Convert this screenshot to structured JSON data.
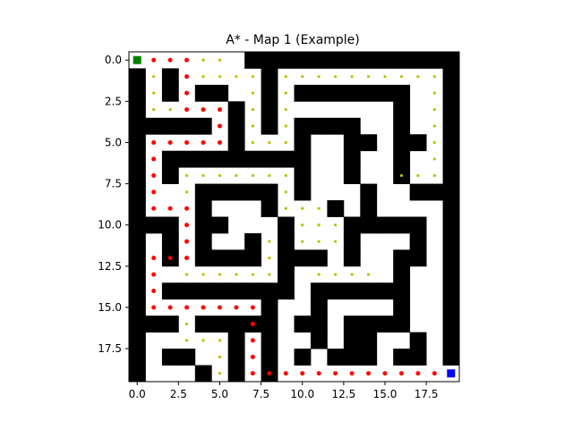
{
  "chart_data": {
    "type": "scatter",
    "title": "A* - Map 1 (Example)",
    "xlabel": "",
    "ylabel": "",
    "xlim": [
      -0.5,
      19.5
    ],
    "ylim": [
      19.5,
      -0.5
    ],
    "x_ticks": [
      0.0,
      2.5,
      5.0,
      7.5,
      10.0,
      12.5,
      15.0,
      17.5
    ],
    "x_tick_labels": [
      "0.0",
      "2.5",
      "5.0",
      "7.5",
      "10.0",
      "12.5",
      "15.0",
      "17.5"
    ],
    "y_ticks": [
      0.0,
      2.5,
      5.0,
      7.5,
      10.0,
      12.5,
      15.0,
      17.5
    ],
    "y_tick_labels": [
      "0.0",
      "2.5",
      "5.0",
      "7.5",
      "10.0",
      "12.5",
      "15.0",
      "17.5"
    ],
    "grid": false,
    "maze_grid": [
      "00000001111111111111",
      "10100000100000000001",
      "10101100101111111001",
      "10000010100000001001",
      "11111010101111001001",
      "10000010001001101101",
      "10111111111001001001",
      "10100000001001001001",
      "10001111101000100111",
      "10001000100010100001",
      "11101100010001111101",
      "10101001010001000101",
      "10101111011101001101",
      "10000000010000001001",
      "10111111110111111001",
      "10000000100100001001",
      "11101111101101111001",
      "10000010100101100101",
      "10110010101011101101",
      "10001010100000000000"
    ],
    "colors": {
      "wall": "#000000",
      "free": "#ffffff",
      "path": "#ff0000",
      "explored": "#bfbf00",
      "start": "#008000",
      "goal": "#0000ff"
    },
    "start": [
      0,
      0
    ],
    "goal": [
      19,
      19
    ],
    "path": [
      [
        1,
        0
      ],
      [
        2,
        0
      ],
      [
        3,
        0
      ],
      [
        3,
        1
      ],
      [
        3,
        2
      ],
      [
        3,
        3
      ],
      [
        4,
        3
      ],
      [
        5,
        3
      ],
      [
        5,
        4
      ],
      [
        5,
        5
      ],
      [
        4,
        5
      ],
      [
        3,
        5
      ],
      [
        2,
        5
      ],
      [
        1,
        5
      ],
      [
        1,
        6
      ],
      [
        1,
        7
      ],
      [
        1,
        8
      ],
      [
        1,
        9
      ],
      [
        2,
        9
      ],
      [
        3,
        9
      ],
      [
        3,
        10
      ],
      [
        3,
        11
      ],
      [
        3,
        12
      ],
      [
        2,
        12
      ],
      [
        1,
        12
      ],
      [
        1,
        13
      ],
      [
        1,
        14
      ],
      [
        1,
        15
      ],
      [
        2,
        15
      ],
      [
        3,
        15
      ],
      [
        4,
        15
      ],
      [
        5,
        15
      ],
      [
        6,
        15
      ],
      [
        7,
        15
      ],
      [
        7,
        16
      ],
      [
        7,
        17
      ],
      [
        7,
        18
      ],
      [
        7,
        19
      ],
      [
        8,
        19
      ],
      [
        9,
        19
      ],
      [
        10,
        19
      ],
      [
        11,
        19
      ],
      [
        12,
        19
      ],
      [
        13,
        19
      ],
      [
        14,
        19
      ],
      [
        15,
        19
      ],
      [
        16,
        19
      ],
      [
        17,
        19
      ],
      [
        18,
        19
      ]
    ],
    "explored": [
      [
        4,
        0
      ],
      [
        5,
        0
      ],
      [
        1,
        1
      ],
      [
        1,
        2
      ],
      [
        1,
        3
      ],
      [
        2,
        3
      ],
      [
        4,
        1
      ],
      [
        5,
        1
      ],
      [
        6,
        1
      ],
      [
        7,
        1
      ],
      [
        7,
        2
      ],
      [
        7,
        3
      ],
      [
        7,
        4
      ],
      [
        7,
        5
      ],
      [
        8,
        5
      ],
      [
        9,
        5
      ],
      [
        9,
        1
      ],
      [
        10,
        1
      ],
      [
        11,
        1
      ],
      [
        12,
        1
      ],
      [
        13,
        1
      ],
      [
        14,
        1
      ],
      [
        15,
        1
      ],
      [
        16,
        1
      ],
      [
        17,
        1
      ],
      [
        18,
        1
      ],
      [
        18,
        2
      ],
      [
        18,
        3
      ],
      [
        18,
        4
      ],
      [
        18,
        5
      ],
      [
        18,
        6
      ],
      [
        18,
        7
      ],
      [
        17,
        7
      ],
      [
        16,
        7
      ],
      [
        9,
        2
      ],
      [
        9,
        3
      ],
      [
        9,
        4
      ],
      [
        3,
        7
      ],
      [
        4,
        7
      ],
      [
        5,
        7
      ],
      [
        6,
        7
      ],
      [
        7,
        7
      ],
      [
        8,
        7
      ],
      [
        9,
        7
      ],
      [
        3,
        8
      ],
      [
        9,
        8
      ],
      [
        9,
        9
      ],
      [
        10,
        9
      ],
      [
        11,
        9
      ],
      [
        10,
        10
      ],
      [
        11,
        10
      ],
      [
        12,
        10
      ],
      [
        10,
        11
      ],
      [
        11,
        11
      ],
      [
        12,
        11
      ],
      [
        8,
        11
      ],
      [
        8,
        12
      ],
      [
        8,
        13
      ],
      [
        7,
        13
      ],
      [
        6,
        13
      ],
      [
        5,
        13
      ],
      [
        4,
        13
      ],
      [
        3,
        13
      ],
      [
        11,
        13
      ],
      [
        12,
        13
      ],
      [
        13,
        13
      ],
      [
        14,
        13
      ],
      [
        3,
        16
      ],
      [
        3,
        17
      ],
      [
        4,
        17
      ],
      [
        5,
        17
      ],
      [
        5,
        18
      ],
      [
        5,
        19
      ]
    ]
  }
}
